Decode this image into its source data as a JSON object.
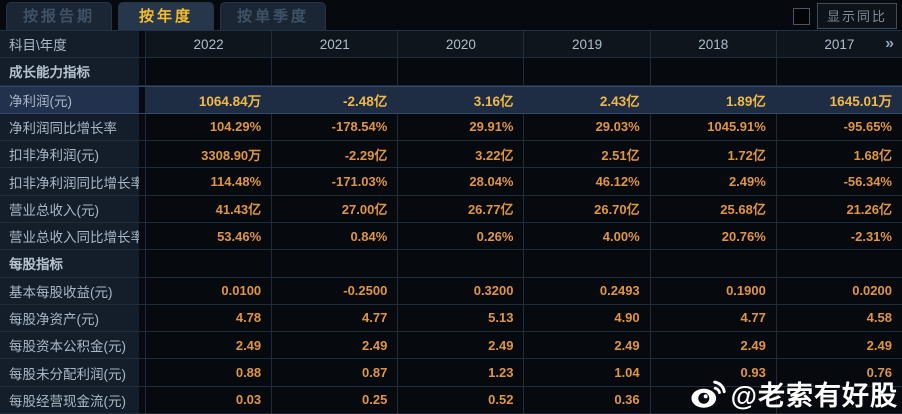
{
  "tabs": {
    "by_report_period": "按报告期",
    "by_year": "按年度",
    "by_quarter": "按单季度",
    "active_tab": "按年度"
  },
  "controls": {
    "show_yoy_label": "显示同比",
    "checkbox_checked": false
  },
  "table": {
    "corner_label": "科目\\年度",
    "columns": [
      "2022",
      "2021",
      "2020",
      "2019",
      "2018",
      "2017"
    ],
    "more_icon": "»",
    "rows": [
      {
        "type": "section",
        "label": "成长能力指标",
        "values": [
          "",
          "",
          "",
          "",
          "",
          ""
        ]
      },
      {
        "type": "data",
        "highlight": true,
        "label": "净利润(元)",
        "values": [
          "1064.84万",
          "-2.48亿",
          "3.16亿",
          "2.43亿",
          "1.89亿",
          "1645.01万"
        ]
      },
      {
        "type": "data",
        "label": "净利润同比增长率",
        "values": [
          "104.29%",
          "-178.54%",
          "29.91%",
          "29.03%",
          "1045.91%",
          "-95.65%"
        ]
      },
      {
        "type": "data",
        "label": "扣非净利润(元)",
        "values": [
          "3308.90万",
          "-2.29亿",
          "3.22亿",
          "2.51亿",
          "1.72亿",
          "1.68亿"
        ]
      },
      {
        "type": "data",
        "label": "扣非净利润同比增长率",
        "values": [
          "114.48%",
          "-171.03%",
          "28.04%",
          "46.12%",
          "2.49%",
          "-56.34%"
        ]
      },
      {
        "type": "data",
        "label": "营业总收入(元)",
        "values": [
          "41.43亿",
          "27.00亿",
          "26.77亿",
          "26.70亿",
          "25.68亿",
          "21.26亿"
        ]
      },
      {
        "type": "data",
        "label": "营业总收入同比增长率",
        "values": [
          "53.46%",
          "0.84%",
          "0.26%",
          "4.00%",
          "20.76%",
          "-2.31%"
        ]
      },
      {
        "type": "section",
        "label": "每股指标",
        "values": [
          "",
          "",
          "",
          "",
          "",
          ""
        ]
      },
      {
        "type": "data",
        "label": "基本每股收益(元)",
        "values": [
          "0.0100",
          "-0.2500",
          "0.3200",
          "0.2493",
          "0.1900",
          "0.0200"
        ]
      },
      {
        "type": "data",
        "label": "每股净资产(元)",
        "values": [
          "4.78",
          "4.77",
          "5.13",
          "4.90",
          "4.77",
          "4.58"
        ]
      },
      {
        "type": "data",
        "label": "每股资本公积金(元)",
        "values": [
          "2.49",
          "2.49",
          "2.49",
          "2.49",
          "2.49",
          "2.49"
        ]
      },
      {
        "type": "data",
        "label": "每股未分配利润(元)",
        "values": [
          "0.88",
          "0.87",
          "1.23",
          "1.04",
          "0.93",
          "0.76"
        ]
      },
      {
        "type": "data",
        "label": "每股经营现金流(元)",
        "values": [
          "0.03",
          "0.25",
          "0.52",
          "0.36",
          "",
          ""
        ]
      }
    ]
  },
  "watermark": {
    "text": "@老索有好股",
    "icon": "weibo-icon"
  },
  "colors": {
    "accent_gold": "#f5bc2a",
    "value_orange": "#e09543",
    "highlight_value": "#f2b848",
    "highlight_bg": "#1e2c44",
    "label_bg": "#141e2b",
    "bg": "#06090d",
    "watermark": "#ffffff"
  }
}
